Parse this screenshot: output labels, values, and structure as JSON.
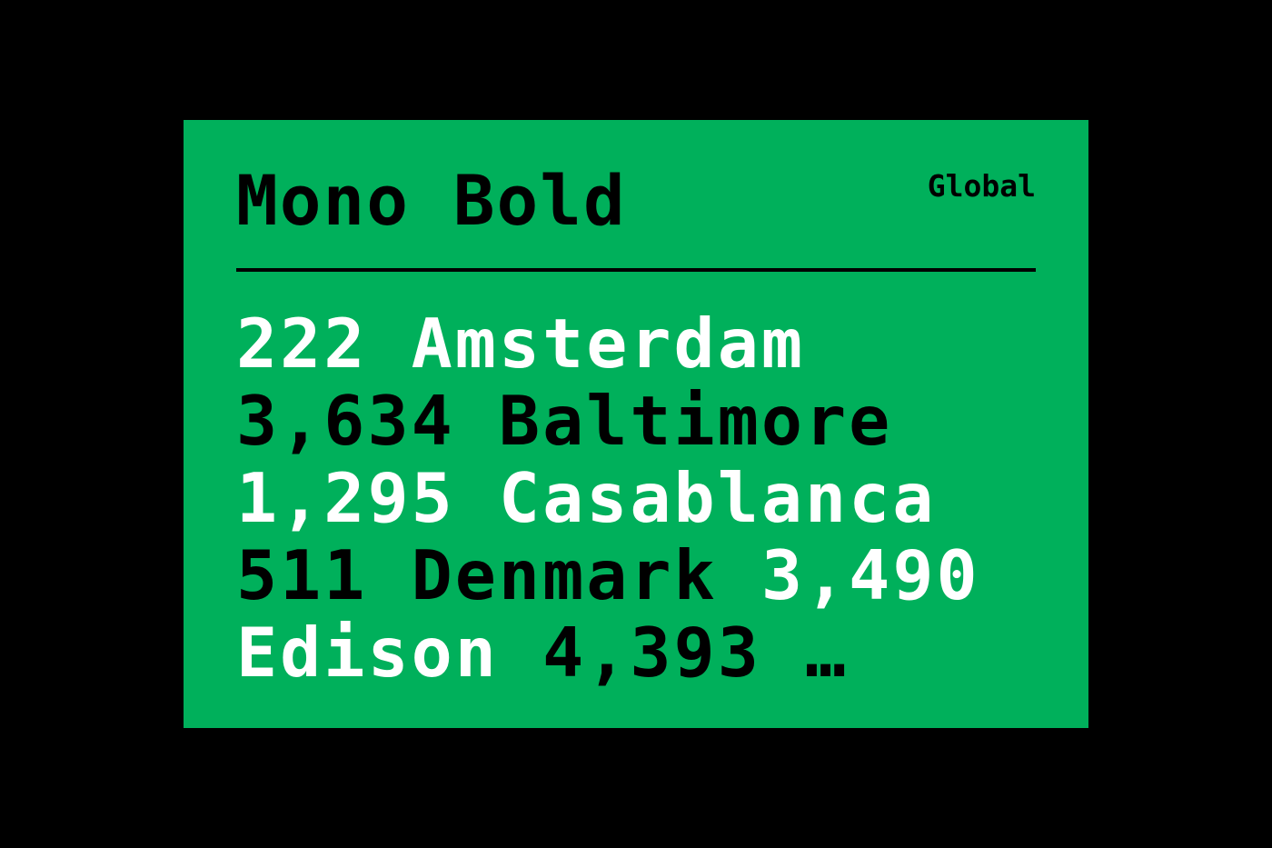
{
  "card": {
    "title": "Mono Bold",
    "tag": "Global",
    "background_color": "#00b05b"
  },
  "specimen": {
    "lines": [
      [
        {
          "text": "222 Amsterdam",
          "color": "white"
        }
      ],
      [
        {
          "text": "3,634 Baltimore",
          "color": "black"
        }
      ],
      [
        {
          "text": "1,295 Casablanca",
          "color": "white"
        }
      ],
      [
        {
          "text": "511 Denmark",
          "color": "black"
        },
        {
          "text": " ",
          "color": "white"
        },
        {
          "text": "3,490",
          "color": "white"
        }
      ],
      [
        {
          "text": "Edison",
          "color": "white"
        },
        {
          "text": " ",
          "color": "white"
        },
        {
          "text": "4,393 …",
          "color": "black"
        }
      ]
    ]
  }
}
